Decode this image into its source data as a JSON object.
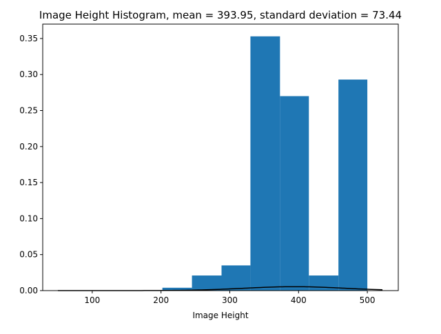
{
  "chart_data": {
    "type": "bar",
    "title": "Image Height Histogram, mean = 393.95,  standard deviation = 73.44",
    "xlabel": "Image Height",
    "ylabel": "",
    "xlim": [
      28,
      545
    ],
    "ylim": [
      0,
      0.37
    ],
    "x_ticks": [
      100,
      200,
      300,
      400,
      500
    ],
    "x_tick_labels": [
      "100",
      "200",
      "300",
      "400",
      "500"
    ],
    "y_ticks": [
      0.0,
      0.05,
      0.1,
      0.15,
      0.2,
      0.25,
      0.3,
      0.35
    ],
    "y_tick_labels": [
      "0.00",
      "0.05",
      "0.10",
      "0.15",
      "0.20",
      "0.25",
      "0.30",
      "0.35"
    ],
    "bins": [
      {
        "x0": 202,
        "x1": 245,
        "value": 0.004
      },
      {
        "x0": 245,
        "x1": 288,
        "value": 0.021
      },
      {
        "x0": 288,
        "x1": 330,
        "value": 0.035
      },
      {
        "x0": 330,
        "x1": 373,
        "value": 0.353
      },
      {
        "x0": 373,
        "x1": 415,
        "value": 0.27
      },
      {
        "x0": 415,
        "x1": 458,
        "value": 0.021
      },
      {
        "x0": 458,
        "x1": 500,
        "value": 0.293
      }
    ],
    "bar_color": "#1f77b4",
    "curve": {
      "type": "normal_pdf",
      "mean": 393.95,
      "std": 73.44,
      "x_range": [
        50,
        522
      ],
      "color": "#000000"
    },
    "grid": false,
    "legend": "none"
  }
}
